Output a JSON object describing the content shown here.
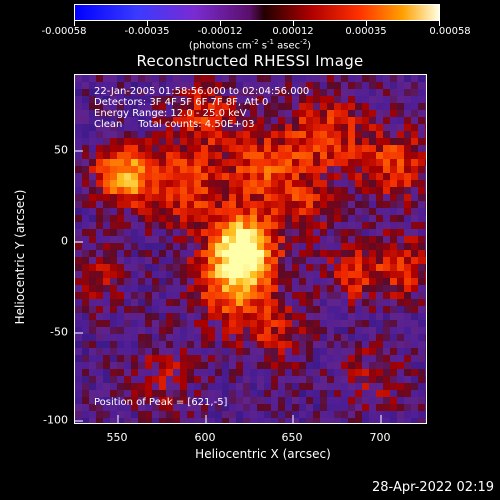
{
  "colorbar": {
    "labels": [
      "-0.00058",
      "-0.00035",
      "-0.00012",
      "0.00012",
      "0.00035",
      "0.00058"
    ],
    "units_main": "(photons cm",
    "units_sup1": "-2",
    "units_mid": " s",
    "units_sup2": "-1",
    "units_end": " asec",
    "units_sup3": "-2",
    "units_close": ")"
  },
  "title": "Reconstructed RHESSI Image",
  "info": {
    "line1": "22-Jan-2005 01:58:56.000 to 02:04:56.000",
    "line2": "Detectors: 3F 4F 5F 6F 7F 8F, Att 0",
    "line3": "Energy Range: 12.0 - 25.0 keV",
    "line4": "Clean     Total counts: 4.50E+03",
    "peak": "Position of Peak = [621,-5]"
  },
  "axes": {
    "xlabel": "Heliocentric X (arcsec)",
    "ylabel": "Heliocentric Y (arcsec)",
    "xticks": [
      "550",
      "600",
      "650",
      "700"
    ],
    "yticks": [
      "50",
      "0",
      "-50",
      "-100"
    ]
  },
  "colors": {
    "low": "#1a0a6a",
    "mid": "#5a1f9e",
    "high": "#ff3a00",
    "peak": "#ffff60"
  },
  "footer": "28-Apr-2022 02:19"
}
